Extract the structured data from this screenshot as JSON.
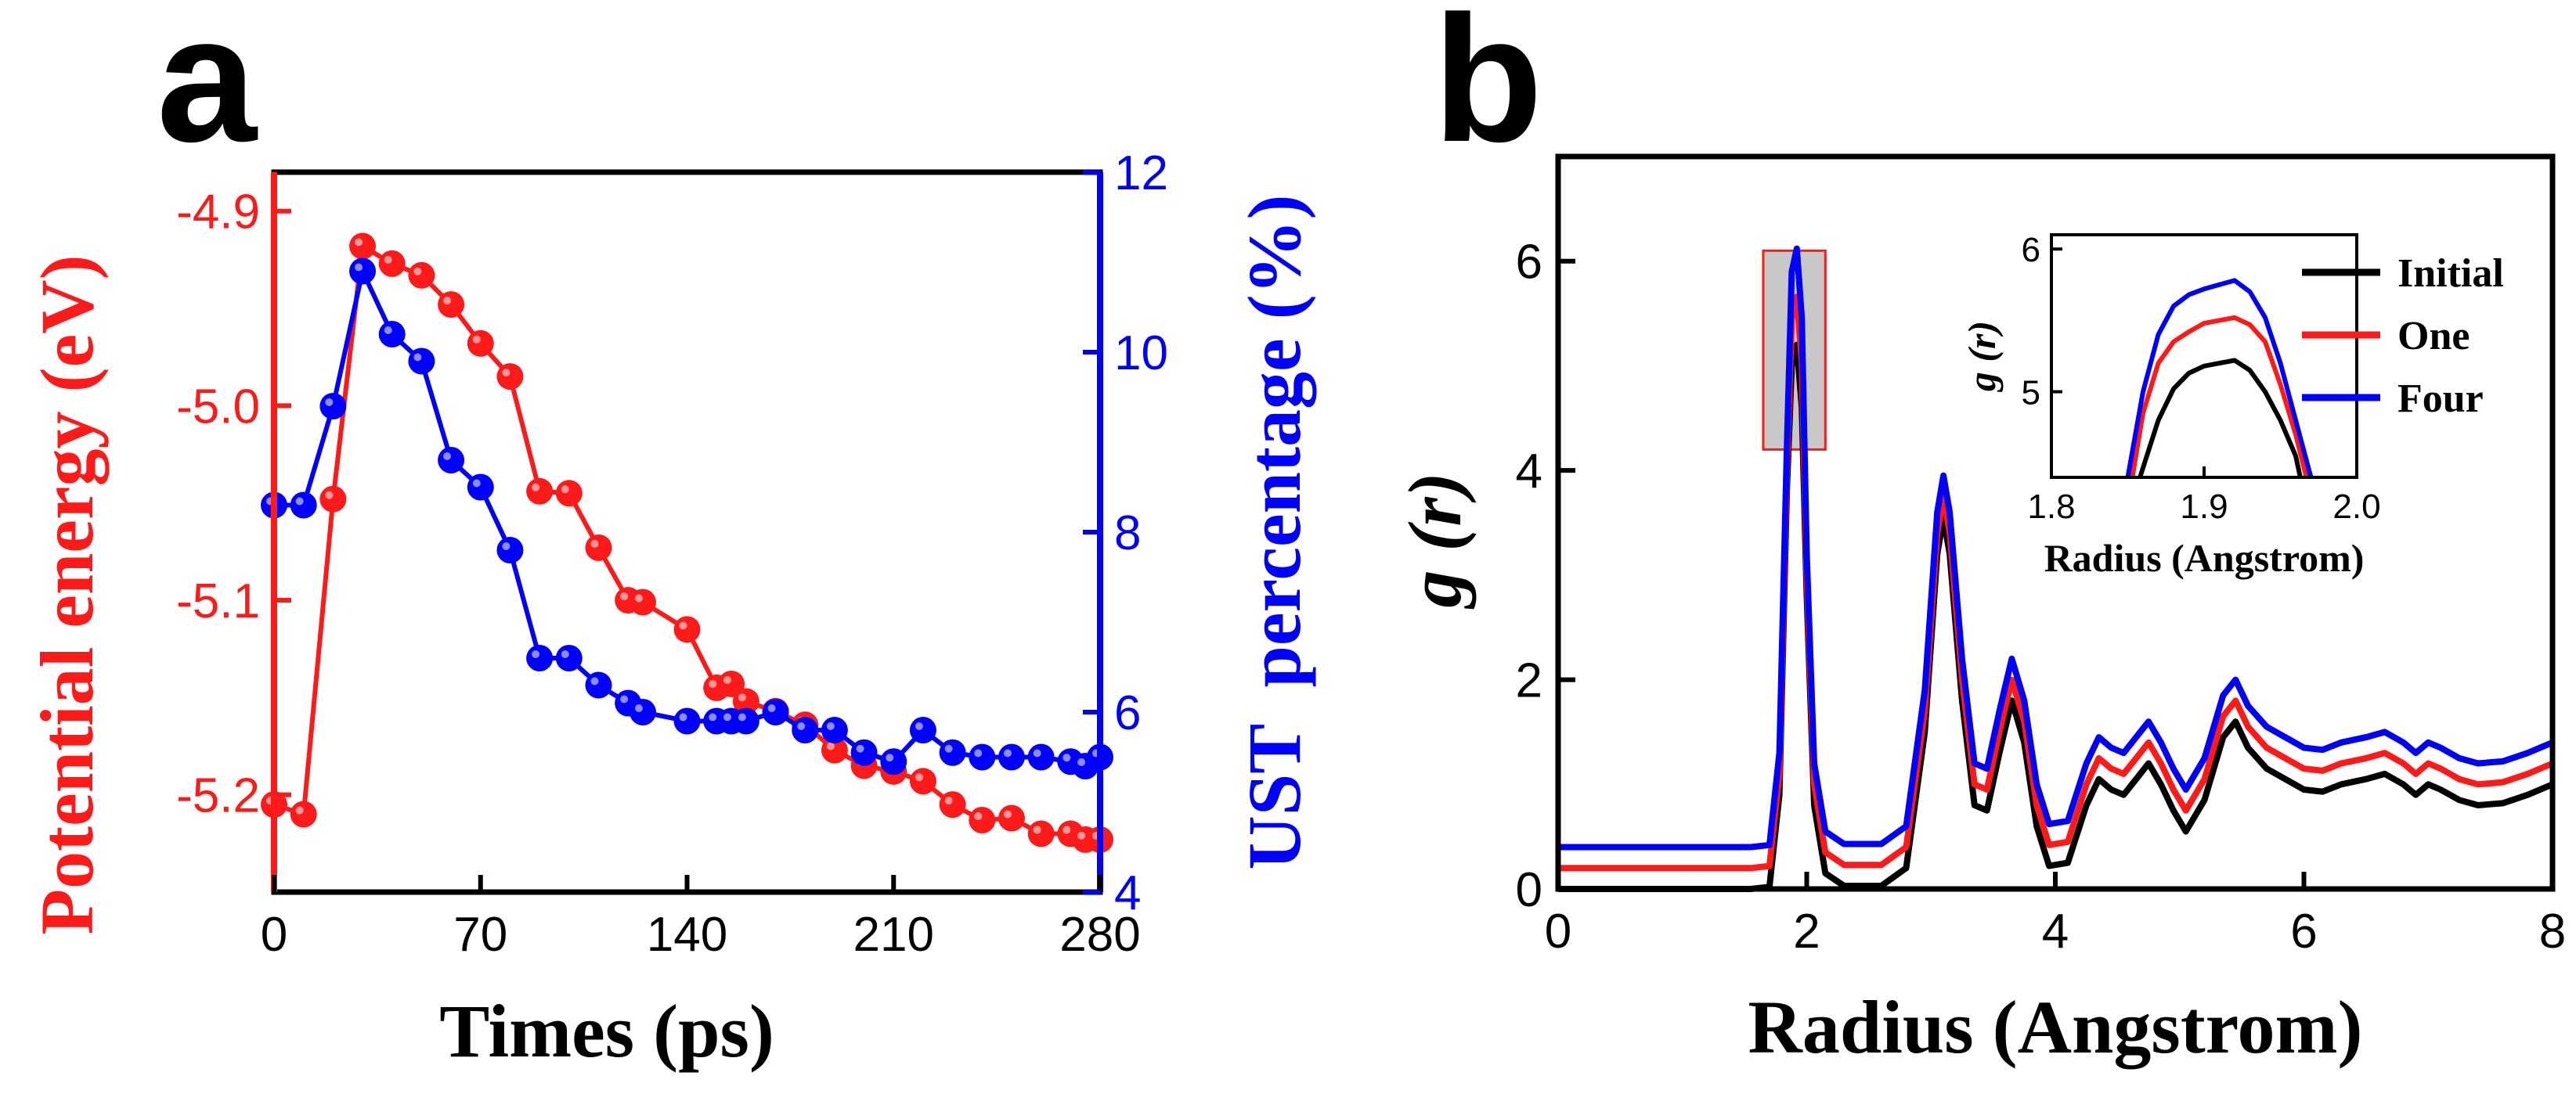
{
  "panels": {
    "a": "a",
    "b": "b"
  },
  "chart_data": [
    {
      "type": "scatter",
      "panel": "a",
      "xlabel": "Times (ps)",
      "ylabel_left": "Potential energy (eV)",
      "ylabel_right_parts": [
        "UST",
        "percentage (%)"
      ],
      "xlim": [
        0,
        280
      ],
      "xticks": [
        0,
        70,
        140,
        210,
        280
      ],
      "ylim_left": [
        -5.25,
        -4.88
      ],
      "yticks_left": [
        -5.2,
        -5.1,
        -5.0,
        -4.9
      ],
      "ylim_right": [
        4,
        12
      ],
      "yticks_right": [
        4,
        6,
        8,
        10,
        12
      ],
      "colors": {
        "left": "#ff1a1a",
        "right": "#0000ff"
      },
      "series": [
        {
          "name": "Potential energy",
          "axis": "left",
          "color": "#ff1a1a",
          "x": [
            0,
            10,
            20,
            30,
            40,
            50,
            60,
            70,
            80,
            90,
            100,
            110,
            120,
            125,
            140,
            150,
            155,
            160,
            170,
            180,
            190,
            200,
            210,
            220,
            230,
            240,
            250,
            260,
            270,
            275,
            280
          ],
          "y": [
            -5.205,
            -5.21,
            -5.048,
            -4.918,
            -4.927,
            -4.933,
            -4.948,
            -4.968,
            -4.985,
            -5.044,
            -5.045,
            -5.073,
            -5.1,
            -5.101,
            -5.115,
            -5.145,
            -5.143,
            -5.152,
            -5.157,
            -5.164,
            -5.177,
            -5.185,
            -5.188,
            -5.193,
            -5.205,
            -5.213,
            -5.212,
            -5.22,
            -5.22,
            -5.223,
            -5.223
          ]
        },
        {
          "name": "UST percentage",
          "axis": "right",
          "color": "#0000ff",
          "x": [
            0,
            10,
            20,
            30,
            40,
            50,
            60,
            70,
            80,
            90,
            100,
            110,
            120,
            125,
            140,
            150,
            155,
            160,
            170,
            180,
            190,
            200,
            210,
            220,
            230,
            240,
            250,
            260,
            270,
            275,
            280
          ],
          "y": [
            8.3,
            8.3,
            9.4,
            10.9,
            10.2,
            9.9,
            8.8,
            8.5,
            7.8,
            6.6,
            6.6,
            6.3,
            6.1,
            6.0,
            5.9,
            5.9,
            5.9,
            5.9,
            6.0,
            5.8,
            5.8,
            5.55,
            5.45,
            5.8,
            5.55,
            5.5,
            5.5,
            5.5,
            5.45,
            5.4,
            5.5
          ]
        }
      ]
    },
    {
      "type": "line",
      "panel": "b",
      "xlabel": "Radius (Angstrom)",
      "ylabel": "g (r)",
      "xlim": [
        0,
        8
      ],
      "xticks": [
        0,
        2,
        4,
        6,
        8
      ],
      "ylim": [
        0,
        7
      ],
      "yticks": [
        0,
        2,
        4,
        6
      ],
      "legend": [
        "Initial",
        "One",
        "Four"
      ],
      "legend_position": "top-right",
      "base_curve": {
        "x": [
          0,
          1.55,
          1.7,
          1.78,
          1.84,
          1.88,
          1.92,
          1.96,
          2.0,
          2.06,
          2.15,
          2.3,
          2.6,
          2.8,
          2.95,
          3.05,
          3.1,
          3.15,
          3.25,
          3.35,
          3.45,
          3.55,
          3.65,
          3.75,
          3.85,
          3.95,
          4.1,
          4.25,
          4.35,
          4.45,
          4.55,
          4.65,
          4.75,
          4.85,
          4.95,
          5.05,
          5.2,
          5.35,
          5.45,
          5.55,
          5.7,
          5.85,
          6.0,
          6.15,
          6.3,
          6.5,
          6.65,
          6.8,
          6.9,
          7.0,
          7.1,
          7.25,
          7.4,
          7.6,
          7.8,
          8.0
        ],
        "y": [
          0,
          0,
          0.02,
          0.9,
          3.8,
          5.0,
          5.2,
          4.6,
          2.8,
          0.8,
          0.15,
          0.03,
          0.03,
          0.2,
          1.5,
          3.2,
          3.55,
          3.2,
          1.8,
          0.8,
          0.75,
          1.3,
          1.8,
          1.4,
          0.6,
          0.22,
          0.25,
          0.8,
          1.05,
          0.95,
          0.9,
          1.05,
          1.2,
          1.0,
          0.75,
          0.55,
          0.85,
          1.45,
          1.6,
          1.35,
          1.15,
          1.05,
          0.95,
          0.93,
          1.0,
          1.05,
          1.1,
          1.0,
          0.9,
          1.0,
          0.95,
          0.85,
          0.8,
          0.82,
          0.9,
          1.0
        ]
      },
      "series": [
        {
          "name": "Initial",
          "color": "#000000",
          "offset": 0,
          "peak_scale": 1.0
        },
        {
          "name": "One",
          "color": "#ff1a1a",
          "offset": 0.2,
          "peak_scale": 1.05
        },
        {
          "name": "Four",
          "color": "#0000ff",
          "offset": 0.4,
          "peak_scale": 1.1
        }
      ],
      "highlight": {
        "x": [
          1.65,
          2.15
        ],
        "y": [
          4.2,
          6.1
        ]
      },
      "inset": {
        "xlabel": "Radius (Angstrom)",
        "ylabel": "g (r)",
        "xlim": [
          1.8,
          2.0
        ],
        "xticks": [
          "1.8",
          "1.9",
          "2.0"
        ],
        "ylim": [
          4.4,
          6.1
        ],
        "yticks": [
          5,
          6
        ],
        "series": [
          {
            "name": "Initial",
            "color": "#000000",
            "x": [
              1.858,
              1.87,
              1.88,
              1.89,
              1.9,
              1.91,
              1.92,
              1.93,
              1.94,
              1.95,
              1.96,
              1.963
            ],
            "y": [
              4.4,
              4.8,
              5.02,
              5.13,
              5.18,
              5.2,
              5.22,
              5.15,
              5.0,
              4.8,
              4.55,
              4.4
            ]
          },
          {
            "name": "One",
            "color": "#ff1a1a",
            "x": [
              1.853,
              1.86,
              1.87,
              1.88,
              1.89,
              1.9,
              1.91,
              1.92,
              1.93,
              1.94,
              1.95,
              1.96,
              1.967
            ],
            "y": [
              4.4,
              4.85,
              5.2,
              5.35,
              5.42,
              5.48,
              5.5,
              5.52,
              5.47,
              5.35,
              5.05,
              4.7,
              4.4
            ]
          },
          {
            "name": "Four",
            "color": "#0000ff",
            "x": [
              1.85,
              1.86,
              1.87,
              1.88,
              1.89,
              1.9,
              1.91,
              1.92,
              1.93,
              1.94,
              1.95,
              1.96,
              1.97
            ],
            "y": [
              4.4,
              5.0,
              5.4,
              5.6,
              5.68,
              5.72,
              5.75,
              5.78,
              5.7,
              5.52,
              5.2,
              4.8,
              4.4
            ]
          }
        ]
      }
    }
  ]
}
